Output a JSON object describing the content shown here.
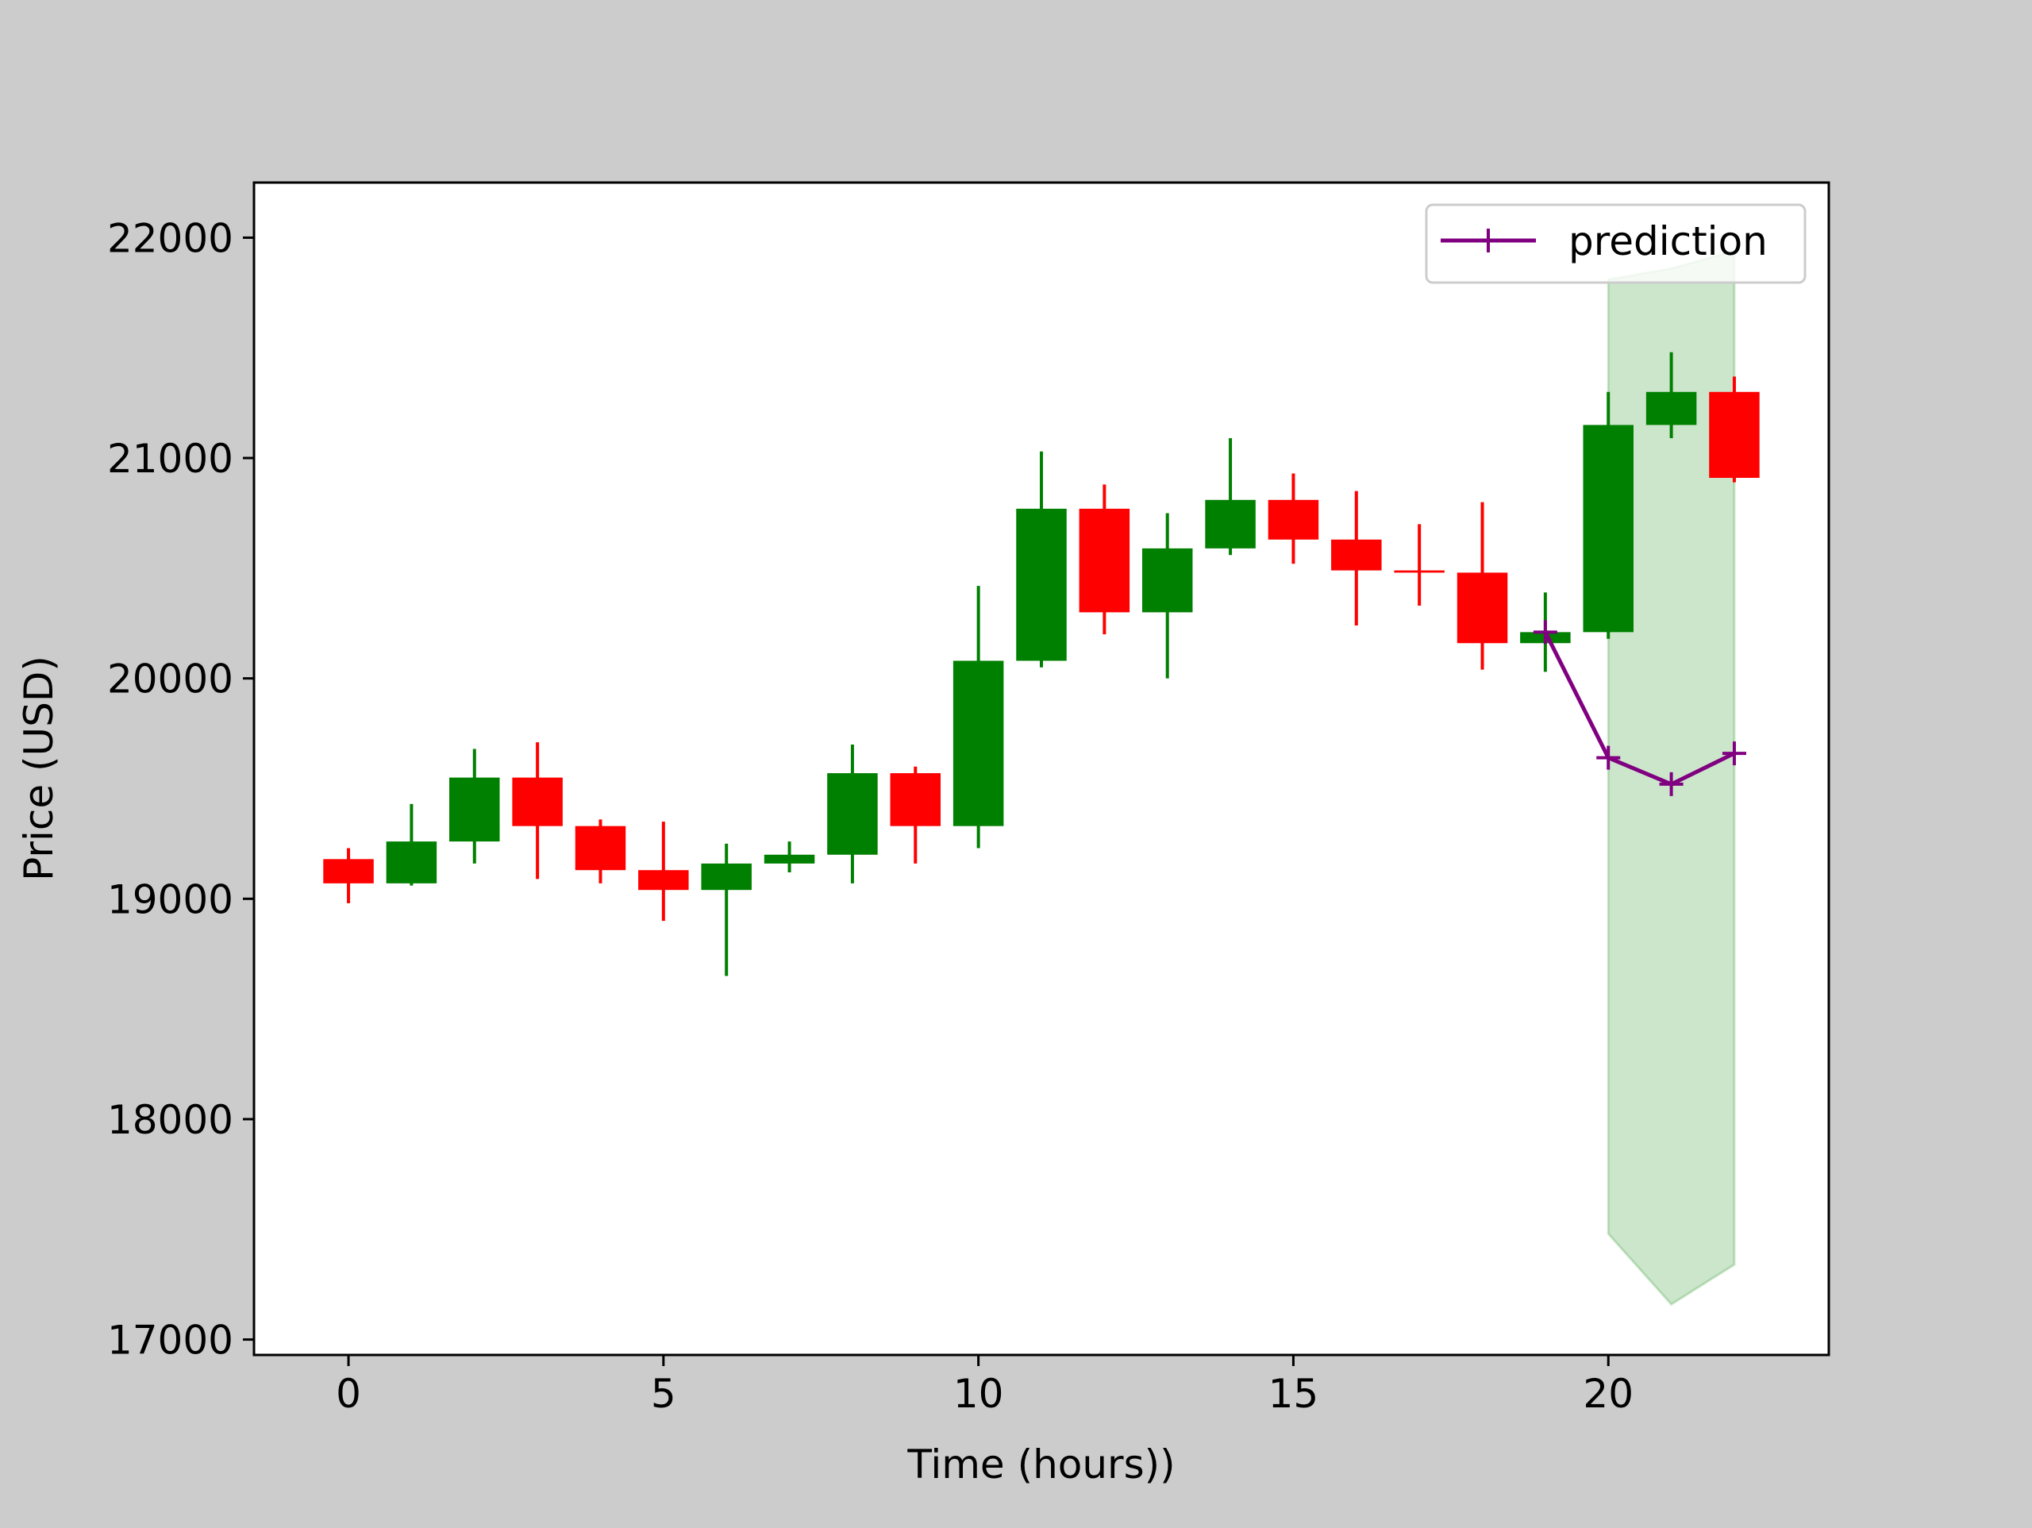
{
  "chart_data": {
    "type": "candlestick",
    "xlabel": "Time (hours))",
    "ylabel": "Price (USD)",
    "xlim": [
      -1.5,
      23.5
    ],
    "ylim": [
      16930,
      22250
    ],
    "xticks": [
      0,
      5,
      10,
      15,
      20
    ],
    "yticks": [
      17000,
      18000,
      19000,
      20000,
      21000,
      22000
    ],
    "grid": false,
    "legend": {
      "position": "top-right",
      "entries": [
        "prediction"
      ]
    },
    "up_color": "#008000",
    "down_color": "#ff0000",
    "prediction_color": "#800080",
    "band_color": "#008000",
    "candles": [
      {
        "t": 0,
        "open": 19180,
        "high": 19230,
        "low": 18980,
        "close": 19070
      },
      {
        "t": 1,
        "open": 19070,
        "high": 19430,
        "low": 19060,
        "close": 19260
      },
      {
        "t": 2,
        "open": 19260,
        "high": 19680,
        "low": 19160,
        "close": 19550
      },
      {
        "t": 3,
        "open": 19550,
        "high": 19710,
        "low": 19090,
        "close": 19330
      },
      {
        "t": 4,
        "open": 19330,
        "high": 19360,
        "low": 19070,
        "close": 19130
      },
      {
        "t": 5,
        "open": 19130,
        "high": 19350,
        "low": 18900,
        "close": 19040
      },
      {
        "t": 6,
        "open": 19040,
        "high": 19250,
        "low": 18650,
        "close": 19160
      },
      {
        "t": 7,
        "open": 19160,
        "high": 19260,
        "low": 19120,
        "close": 19200
      },
      {
        "t": 8,
        "open": 19200,
        "high": 19700,
        "low": 19070,
        "close": 19570
      },
      {
        "t": 9,
        "open": 19570,
        "high": 19600,
        "low": 19160,
        "close": 19330
      },
      {
        "t": 10,
        "open": 19330,
        "high": 20420,
        "low": 19230,
        "close": 20080
      },
      {
        "t": 11,
        "open": 20080,
        "high": 21030,
        "low": 20050,
        "close": 20770
      },
      {
        "t": 12,
        "open": 20770,
        "high": 20880,
        "low": 20200,
        "close": 20300
      },
      {
        "t": 13,
        "open": 20300,
        "high": 20750,
        "low": 20000,
        "close": 20590
      },
      {
        "t": 14,
        "open": 20590,
        "high": 21090,
        "low": 20560,
        "close": 20810
      },
      {
        "t": 15,
        "open": 20810,
        "high": 20930,
        "low": 20520,
        "close": 20630
      },
      {
        "t": 16,
        "open": 20630,
        "high": 20850,
        "low": 20240,
        "close": 20490
      },
      {
        "t": 17,
        "open": 20490,
        "high": 20700,
        "low": 20330,
        "close": 20480
      },
      {
        "t": 18,
        "open": 20480,
        "high": 20800,
        "low": 20040,
        "close": 20160
      },
      {
        "t": 19,
        "open": 20160,
        "high": 20390,
        "low": 20030,
        "close": 20210
      },
      {
        "t": 20,
        "open": 20210,
        "high": 21300,
        "low": 20180,
        "close": 21150
      },
      {
        "t": 21,
        "open": 21150,
        "high": 21480,
        "low": 21090,
        "close": 21300
      },
      {
        "t": 22,
        "open": 21300,
        "high": 21370,
        "low": 20890,
        "close": 20910
      }
    ],
    "prediction": {
      "name": "prediction",
      "x": [
        19,
        20,
        21,
        22
      ],
      "y": [
        20210,
        19640,
        19520,
        19660
      ]
    },
    "band": {
      "x": [
        20,
        21,
        22
      ],
      "upper": [
        21810,
        21860,
        21940
      ],
      "lower": [
        17480,
        17160,
        17340
      ]
    }
  }
}
